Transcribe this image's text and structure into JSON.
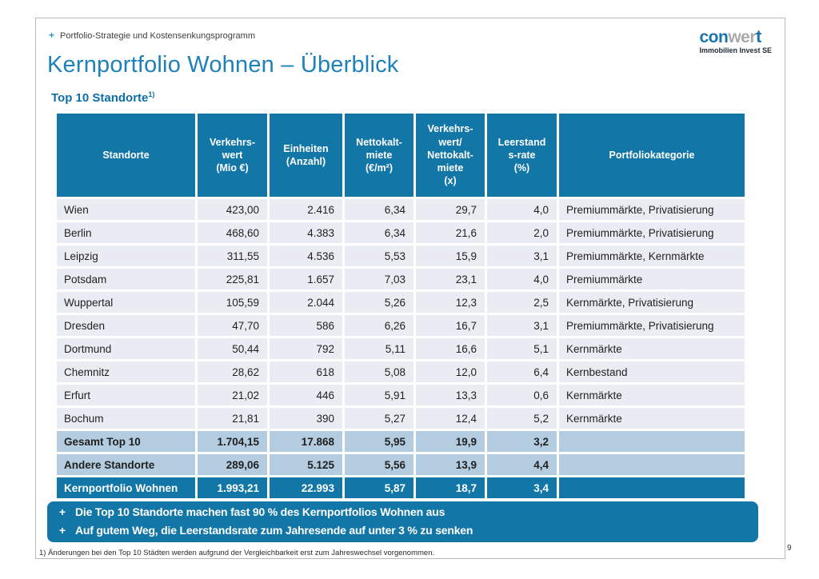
{
  "page": {
    "number": "9"
  },
  "header": {
    "strapline": "Portfolio-Strategie und Kostensenkungsprogramm",
    "strapline_bullet": "+",
    "title": "Kernportfolio Wohnen – Überblick",
    "subtitle": "Top 10 Standorte",
    "subtitle_marker": "1)"
  },
  "logo": {
    "part1": "con",
    "part2": "wer",
    "part3": "t",
    "tagline": "Immobilien Invest SE"
  },
  "colors": {
    "accent_teal": "#1276a6",
    "row_background": "#e9edf3",
    "summary_row_background": "#b4cce0",
    "title_blue": "#1e81ba",
    "logo_gray": "#a7a9ab"
  },
  "table": {
    "columns": [
      "Standorte",
      "Verkehrs-\nwert\n(Mio €)",
      "Einheiten\n(Anzahl)",
      "Nettokalt-\nmiete\n(€/m²)",
      "Verkehrs-\nwert/\nNettokalt-\nmiete\n(x)",
      "Leerstand\ns-rate\n(%)",
      "Portfoliokategorie"
    ],
    "rows": [
      {
        "style": "data",
        "cells": [
          "Wien",
          "423,00",
          "2.416",
          "6,34",
          "29,7",
          "4,0",
          "Premiummärkte, Privatisierung"
        ]
      },
      {
        "style": "data",
        "cells": [
          "Berlin",
          "468,60",
          "4.383",
          "6,34",
          "21,6",
          "2,0",
          "Premiummärkte, Privatisierung"
        ]
      },
      {
        "style": "data",
        "cells": [
          "Leipzig",
          "311,55",
          "4.536",
          "5,53",
          "15,9",
          "3,1",
          "Premiummärkte, Kernmärkte"
        ]
      },
      {
        "style": "data",
        "cells": [
          "Potsdam",
          "225,81",
          "1.657",
          "7,03",
          "23,1",
          "4,0",
          "Premiummärkte"
        ]
      },
      {
        "style": "data",
        "cells": [
          "Wuppertal",
          "105,59",
          "2.044",
          "5,26",
          "12,3",
          "2,5",
          "Kernmärkte, Privatisierung"
        ]
      },
      {
        "style": "data",
        "cells": [
          "Dresden",
          "47,70",
          "586",
          "6,26",
          "16,7",
          "3,1",
          "Premiummärkte, Privatisierung"
        ]
      },
      {
        "style": "data",
        "cells": [
          "Dortmund",
          "50,44",
          "792",
          "5,11",
          "16,6",
          "5,1",
          "Kernmärkte"
        ]
      },
      {
        "style": "data",
        "cells": [
          "Chemnitz",
          "28,62",
          "618",
          "5,08",
          "12,0",
          "6,4",
          "Kernbestand"
        ]
      },
      {
        "style": "data",
        "cells": [
          "Erfurt",
          "21,02",
          "446",
          "5,91",
          "13,3",
          "0,6",
          "Kernmärkte"
        ]
      },
      {
        "style": "data",
        "cells": [
          "Bochum",
          "21,81",
          "390",
          "5,27",
          "12,4",
          "5,2",
          "Kernmärkte"
        ]
      },
      {
        "style": "summary",
        "cells": [
          "Gesamt Top 10",
          "1.704,15",
          "17.868",
          "5,95",
          "19,9",
          "3,2",
          ""
        ]
      },
      {
        "style": "summary",
        "cells": [
          "Andere Standorte",
          "289,06",
          "5.125",
          "5,56",
          "13,9",
          "4,4",
          ""
        ]
      },
      {
        "style": "total",
        "cells": [
          "Kernportfolio Wohnen",
          "1.993,21",
          "22.993",
          "5,87",
          "18,7",
          "3,4",
          ""
        ]
      }
    ]
  },
  "callouts": [
    "Die Top 10 Standorte machen fast 90 % des Kernportfolios Wohnen aus",
    "Auf gutem Weg, die Leerstandsrate zum Jahresende auf unter 3 % zu senken"
  ],
  "callout_bullet": "+",
  "footnote": "1) Änderungen bei den Top 10 Städten werden aufgrund der Vergleichbarkeit erst zum Jahreswechsel vorgenommen."
}
